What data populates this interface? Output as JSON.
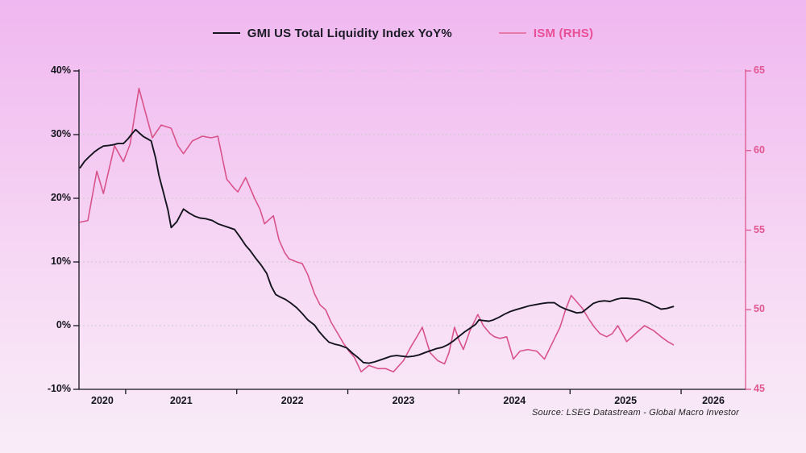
{
  "source_note": "Source: LSEG Datastream - Global Macro Investor",
  "chart_data": {
    "type": "line",
    "title": "",
    "legend_position": "top-center",
    "grid": "horizontal-dashed",
    "grid_color": "#c7c7c7",
    "x_axis": {
      "domain": [
        2020.58,
        2026.58
      ],
      "ticks": [
        2021,
        2022,
        2023,
        2024,
        2025,
        2026
      ],
      "label_texts": [
        "2020",
        "2021",
        "2022",
        "2023",
        "2024",
        "2025",
        "2026"
      ],
      "label_centers": [
        2020.79,
        2021.5,
        2022.5,
        2023.5,
        2024.5,
        2025.5,
        2026.29
      ],
      "axis_color": "#15151d"
    },
    "y_left": {
      "domain": [
        -10,
        40
      ],
      "ticks": [
        -10,
        0,
        10,
        20,
        30,
        40
      ],
      "labels": [
        "-10%",
        "0%",
        "10%",
        "20%",
        "30%",
        "40%"
      ],
      "axis_color": "#15151d",
      "label_color": "#15151d"
    },
    "y_right": {
      "domain": [
        45,
        65
      ],
      "ticks": [
        45,
        50,
        55,
        60,
        65
      ],
      "labels": [
        "45",
        "50",
        "55",
        "60",
        "65"
      ],
      "axis_color": "#e0568f",
      "label_color": "#e0568f"
    },
    "series": [
      {
        "name": "GMI US Total Liquidity Index YoY%",
        "axis": "left",
        "color": "#15151f",
        "label_color": "#1b1b26",
        "points": [
          [
            2020.59,
            24.8
          ],
          [
            2020.63,
            25.8
          ],
          [
            2020.67,
            26.5
          ],
          [
            2020.72,
            27.3
          ],
          [
            2020.76,
            27.8
          ],
          [
            2020.8,
            28.2
          ],
          [
            2020.85,
            28.3
          ],
          [
            2020.89,
            28.4
          ],
          [
            2020.93,
            28.6
          ],
          [
            2020.98,
            28.6
          ],
          [
            2021.02,
            29.3
          ],
          [
            2021.06,
            30.2
          ],
          [
            2021.09,
            30.8
          ],
          [
            2021.12,
            30.3
          ],
          [
            2021.16,
            29.7
          ],
          [
            2021.2,
            29.3
          ],
          [
            2021.23,
            29.0
          ],
          [
            2021.27,
            26.3
          ],
          [
            2021.3,
            23.6
          ],
          [
            2021.34,
            20.9
          ],
          [
            2021.38,
            18.2
          ],
          [
            2021.41,
            15.4
          ],
          [
            2021.46,
            16.3
          ],
          [
            2021.52,
            18.3
          ],
          [
            2021.57,
            17.7
          ],
          [
            2021.62,
            17.2
          ],
          [
            2021.67,
            16.9
          ],
          [
            2021.72,
            16.8
          ],
          [
            2021.78,
            16.5
          ],
          [
            2021.83,
            16.0
          ],
          [
            2021.88,
            15.7
          ],
          [
            2021.93,
            15.4
          ],
          [
            2021.98,
            15.1
          ],
          [
            2022.03,
            13.9
          ],
          [
            2022.08,
            12.6
          ],
          [
            2022.12,
            11.8
          ],
          [
            2022.17,
            10.6
          ],
          [
            2022.22,
            9.5
          ],
          [
            2022.27,
            8.2
          ],
          [
            2022.31,
            6.2
          ],
          [
            2022.35,
            4.9
          ],
          [
            2022.39,
            4.5
          ],
          [
            2022.44,
            4.1
          ],
          [
            2022.49,
            3.5
          ],
          [
            2022.54,
            2.8
          ],
          [
            2022.59,
            1.9
          ],
          [
            2022.64,
            0.9
          ],
          [
            2022.7,
            0.1
          ],
          [
            2022.74,
            -0.9
          ],
          [
            2022.79,
            -1.9
          ],
          [
            2022.83,
            -2.6
          ],
          [
            2022.88,
            -2.9
          ],
          [
            2022.93,
            -3.1
          ],
          [
            2022.99,
            -3.5
          ],
          [
            2023.04,
            -4.3
          ],
          [
            2023.09,
            -5.0
          ],
          [
            2023.14,
            -5.8
          ],
          [
            2023.19,
            -5.9
          ],
          [
            2023.24,
            -5.7
          ],
          [
            2023.29,
            -5.4
          ],
          [
            2023.34,
            -5.1
          ],
          [
            2023.39,
            -4.8
          ],
          [
            2023.44,
            -4.7
          ],
          [
            2023.49,
            -4.8
          ],
          [
            2023.54,
            -4.9
          ],
          [
            2023.59,
            -4.8
          ],
          [
            2023.64,
            -4.6
          ],
          [
            2023.7,
            -4.2
          ],
          [
            2023.75,
            -3.9
          ],
          [
            2023.8,
            -3.6
          ],
          [
            2023.85,
            -3.4
          ],
          [
            2023.9,
            -3.0
          ],
          [
            2023.95,
            -2.4
          ],
          [
            2024.0,
            -1.7
          ],
          [
            2024.05,
            -1.0
          ],
          [
            2024.1,
            -0.4
          ],
          [
            2024.15,
            0.2
          ],
          [
            2024.18,
            0.9
          ],
          [
            2024.22,
            0.8
          ],
          [
            2024.27,
            0.7
          ],
          [
            2024.31,
            0.9
          ],
          [
            2024.36,
            1.3
          ],
          [
            2024.41,
            1.8
          ],
          [
            2024.46,
            2.2
          ],
          [
            2024.51,
            2.5
          ],
          [
            2024.57,
            2.8
          ],
          [
            2024.63,
            3.1
          ],
          [
            2024.69,
            3.3
          ],
          [
            2024.75,
            3.5
          ],
          [
            2024.8,
            3.6
          ],
          [
            2024.86,
            3.6
          ],
          [
            2024.91,
            3.0
          ],
          [
            2024.96,
            2.6
          ],
          [
            2025.01,
            2.3
          ],
          [
            2025.06,
            2.0
          ],
          [
            2025.11,
            2.1
          ],
          [
            2025.16,
            2.8
          ],
          [
            2025.21,
            3.5
          ],
          [
            2025.26,
            3.8
          ],
          [
            2025.31,
            3.9
          ],
          [
            2025.36,
            3.8
          ],
          [
            2025.41,
            4.1
          ],
          [
            2025.46,
            4.3
          ],
          [
            2025.51,
            4.3
          ],
          [
            2025.57,
            4.2
          ],
          [
            2025.62,
            4.1
          ],
          [
            2025.67,
            3.8
          ],
          [
            2025.72,
            3.5
          ],
          [
            2025.77,
            3.0
          ],
          [
            2025.82,
            2.6
          ],
          [
            2025.87,
            2.7
          ],
          [
            2025.93,
            3.0
          ]
        ]
      },
      {
        "name": "ISM (RHS)",
        "axis": "right",
        "color": "#d9538b",
        "label_color": "#e94f96",
        "points": [
          [
            2020.59,
            55.5
          ],
          [
            2020.66,
            55.6
          ],
          [
            2020.74,
            58.7
          ],
          [
            2020.8,
            57.3
          ],
          [
            2020.9,
            60.3
          ],
          [
            2020.98,
            59.3
          ],
          [
            2021.04,
            60.4
          ],
          [
            2021.12,
            63.9
          ],
          [
            2021.24,
            60.8
          ],
          [
            2021.32,
            61.6
          ],
          [
            2021.41,
            61.4
          ],
          [
            2021.47,
            60.3
          ],
          [
            2021.52,
            59.8
          ],
          [
            2021.6,
            60.6
          ],
          [
            2021.69,
            60.9
          ],
          [
            2021.77,
            60.8
          ],
          [
            2021.83,
            60.9
          ],
          [
            2021.91,
            58.2
          ],
          [
            2021.98,
            57.6
          ],
          [
            2022.01,
            57.4
          ],
          [
            2022.08,
            58.3
          ],
          [
            2022.16,
            57.0
          ],
          [
            2022.21,
            56.3
          ],
          [
            2022.25,
            55.4
          ],
          [
            2022.33,
            55.9
          ],
          [
            2022.38,
            54.4
          ],
          [
            2022.43,
            53.6
          ],
          [
            2022.47,
            53.2
          ],
          [
            2022.54,
            53.0
          ],
          [
            2022.59,
            52.9
          ],
          [
            2022.64,
            52.2
          ],
          [
            2022.7,
            51.0
          ],
          [
            2022.75,
            50.3
          ],
          [
            2022.8,
            50.0
          ],
          [
            2022.85,
            49.2
          ],
          [
            2022.91,
            48.5
          ],
          [
            2022.96,
            47.9
          ],
          [
            2023.01,
            47.4
          ],
          [
            2023.06,
            47.0
          ],
          [
            2023.12,
            46.1
          ],
          [
            2023.19,
            46.5
          ],
          [
            2023.27,
            46.3
          ],
          [
            2023.34,
            46.3
          ],
          [
            2023.41,
            46.1
          ],
          [
            2023.5,
            46.8
          ],
          [
            2023.57,
            47.7
          ],
          [
            2023.63,
            48.4
          ],
          [
            2023.67,
            48.9
          ],
          [
            2023.74,
            47.3
          ],
          [
            2023.81,
            46.8
          ],
          [
            2023.87,
            46.6
          ],
          [
            2023.91,
            47.3
          ],
          [
            2023.96,
            48.9
          ],
          [
            2024.0,
            48.1
          ],
          [
            2024.04,
            47.5
          ],
          [
            2024.1,
            48.7
          ],
          [
            2024.17,
            49.7
          ],
          [
            2024.22,
            49.0
          ],
          [
            2024.28,
            48.5
          ],
          [
            2024.32,
            48.3
          ],
          [
            2024.37,
            48.2
          ],
          [
            2024.43,
            48.3
          ],
          [
            2024.49,
            46.9
          ],
          [
            2024.55,
            47.4
          ],
          [
            2024.62,
            47.5
          ],
          [
            2024.7,
            47.4
          ],
          [
            2024.77,
            46.9
          ],
          [
            2024.84,
            47.9
          ],
          [
            2024.91,
            48.9
          ],
          [
            2024.96,
            50.0
          ],
          [
            2025.01,
            50.9
          ],
          [
            2025.06,
            50.5
          ],
          [
            2025.11,
            50.1
          ],
          [
            2025.17,
            49.4
          ],
          [
            2025.22,
            48.9
          ],
          [
            2025.27,
            48.5
          ],
          [
            2025.33,
            48.3
          ],
          [
            2025.38,
            48.5
          ],
          [
            2025.43,
            49.0
          ],
          [
            2025.51,
            48.0
          ],
          [
            2025.59,
            48.5
          ],
          [
            2025.67,
            49.0
          ],
          [
            2025.75,
            48.7
          ],
          [
            2025.82,
            48.3
          ],
          [
            2025.88,
            48.0
          ],
          [
            2025.93,
            47.8
          ]
        ]
      }
    ]
  }
}
